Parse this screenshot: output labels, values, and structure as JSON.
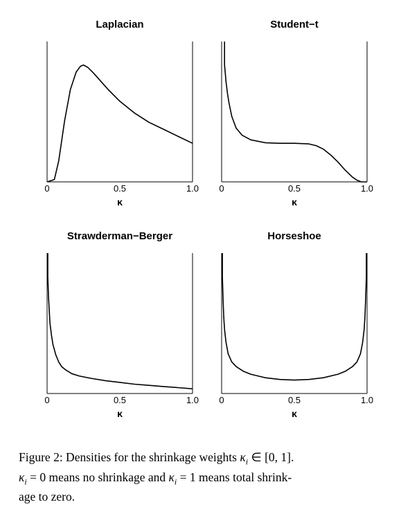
{
  "chart_data": [
    {
      "type": "line",
      "title": "Laplacian",
      "xlabel": "κ",
      "xlim": [
        0,
        1
      ],
      "xticks": [
        "0",
        "0.5",
        "1.0"
      ],
      "x": [
        0.0,
        0.05,
        0.08,
        0.12,
        0.16,
        0.2,
        0.23,
        0.25,
        0.28,
        0.32,
        0.37,
        0.42,
        0.5,
        0.6,
        0.7,
        0.8,
        0.9,
        1.0
      ],
      "y": [
        0.0,
        0.02,
        0.18,
        0.52,
        0.79,
        0.94,
        0.99,
        1.0,
        0.98,
        0.93,
        0.86,
        0.79,
        0.69,
        0.59,
        0.51,
        0.45,
        0.39,
        0.33
      ]
    },
    {
      "type": "line",
      "title": "Student−t",
      "xlabel": "κ",
      "xlim": [
        0,
        1
      ],
      "xticks": [
        "0",
        "0.5",
        "1.0"
      ],
      "x": [
        0.02,
        0.025,
        0.03,
        0.04,
        0.05,
        0.07,
        0.1,
        0.14,
        0.2,
        0.3,
        0.4,
        0.5,
        0.6,
        0.65,
        0.7,
        0.75,
        0.8,
        0.85,
        0.9,
        0.93,
        0.96,
        1.0
      ],
      "y": [
        1.0,
        0.93,
        0.86,
        0.76,
        0.68,
        0.56,
        0.46,
        0.4,
        0.36,
        0.335,
        0.33,
        0.33,
        0.325,
        0.31,
        0.28,
        0.23,
        0.17,
        0.1,
        0.04,
        0.015,
        0.0,
        0.0
      ]
    },
    {
      "type": "line",
      "title": "Strawderman−Berger",
      "xlabel": "κ",
      "xlim": [
        0,
        1
      ],
      "xticks": [
        "0",
        "0.5",
        "1.0"
      ],
      "x": [
        0.005,
        0.01,
        0.015,
        0.02,
        0.03,
        0.04,
        0.06,
        0.08,
        0.1,
        0.13,
        0.17,
        0.22,
        0.3,
        0.4,
        0.5,
        0.6,
        0.7,
        0.8,
        0.9,
        1.0
      ],
      "y": [
        1.0,
        0.82,
        0.7,
        0.6,
        0.5,
        0.42,
        0.33,
        0.27,
        0.23,
        0.2,
        0.17,
        0.15,
        0.13,
        0.11,
        0.095,
        0.08,
        0.07,
        0.06,
        0.05,
        0.04
      ]
    },
    {
      "type": "line",
      "title": "Horseshoe",
      "xlabel": "κ",
      "xlim": [
        0,
        1
      ],
      "xticks": [
        "0",
        "0.5",
        "1.0"
      ],
      "x": [
        0.005,
        0.01,
        0.015,
        0.02,
        0.03,
        0.045,
        0.07,
        0.1,
        0.15,
        0.2,
        0.3,
        0.4,
        0.5,
        0.6,
        0.7,
        0.8,
        0.85,
        0.9,
        0.93,
        0.955,
        0.97,
        0.98,
        0.985,
        0.99,
        0.995
      ],
      "y": [
        1.0,
        0.8,
        0.65,
        0.55,
        0.44,
        0.34,
        0.27,
        0.23,
        0.19,
        0.165,
        0.135,
        0.12,
        0.115,
        0.12,
        0.135,
        0.165,
        0.19,
        0.23,
        0.27,
        0.34,
        0.44,
        0.55,
        0.65,
        0.8,
        1.0
      ]
    }
  ],
  "caption": {
    "line1_prefix": "Figure 2:  Densities for the shrinkage weights ",
    "kappa_i": "κ",
    "sub_i": "i",
    "in_set": " ∈ [0, 1].",
    "line2_a": " = 0 means no shrinkage and ",
    "line2_b": " = 1 means total shrink-",
    "line3": "age to zero."
  }
}
